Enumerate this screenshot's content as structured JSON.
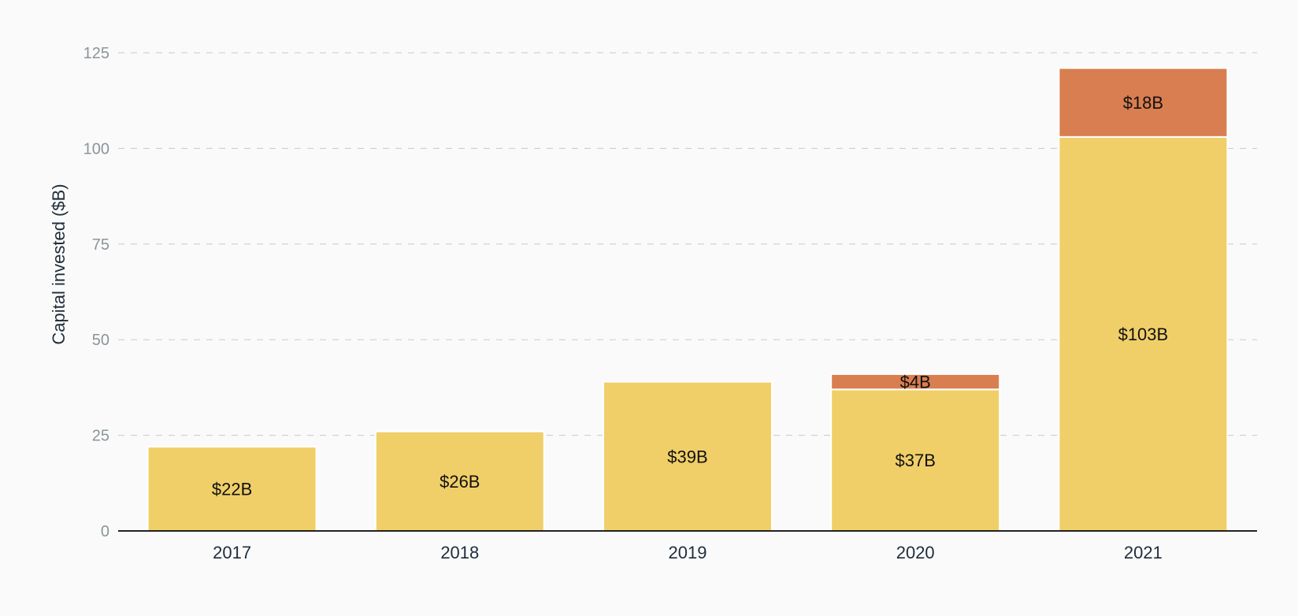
{
  "chart_data": {
    "type": "bar",
    "stacked": true,
    "title": "",
    "xlabel": "",
    "ylabel": "Capital invested ($B)",
    "ylim": [
      0,
      125
    ],
    "yticks": [
      0,
      25,
      50,
      75,
      100,
      125
    ],
    "grid": true,
    "categories": [
      "2017",
      "2018",
      "2019",
      "2020",
      "2021"
    ],
    "series": [
      {
        "color": "#f0cf69",
        "values": [
          22,
          26,
          39,
          37,
          103
        ],
        "labels": [
          "$22B",
          "$26B",
          "$39B",
          "$37B",
          "$103B"
        ]
      },
      {
        "color": "#d97e50",
        "values": [
          0,
          0,
          0,
          4,
          18
        ],
        "labels": [
          "",
          "",
          "",
          "$4B",
          "$18B"
        ]
      }
    ]
  }
}
